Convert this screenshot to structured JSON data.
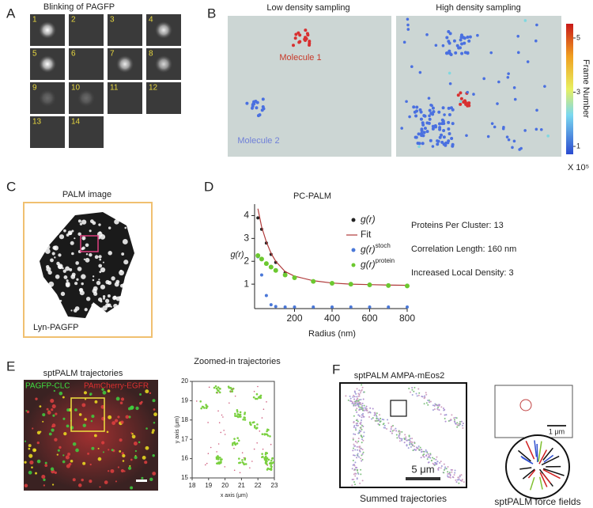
{
  "panels": {
    "a": {
      "label": "A",
      "title": "Blinking of PAGFP",
      "frames": [
        1,
        2,
        3,
        4,
        5,
        6,
        7,
        8,
        9,
        10,
        11,
        12,
        13,
        14
      ]
    },
    "b": {
      "label": "B",
      "left_title": "Low density sampling",
      "right_title": "High density sampling",
      "molecule_1": "Molecule 1",
      "molecule_2": "Molecule 2",
      "colorbar_title": "Frame Number",
      "colorbar_ticks": [
        1,
        3,
        5
      ],
      "colorbar_unit": "X 10⁵"
    },
    "c": {
      "label": "C",
      "title": "PALM image",
      "caption": "Lyn-PAGFP"
    },
    "d": {
      "label": "D"
    },
    "e": {
      "label": "E",
      "left_title": "sptPALM trajectories",
      "green_label": "PAGFP-CLC",
      "red_label": "PAmCherry-EGFR",
      "right_title": "Zoomed-in trajectories",
      "x_label": "x axis (μm)",
      "y_label": "y axis (μm)",
      "x_ticks": [
        18,
        19,
        20,
        21,
        22,
        23
      ],
      "y_ticks": [
        15,
        16,
        17,
        18,
        19,
        20
      ]
    },
    "f": {
      "label": "F",
      "title": "sptPALM AMPA-mEos2",
      "scale_label": "5 μm",
      "caption": "Summed trajectories",
      "inset_scale_label": "1 μm",
      "force_caption": "sptPALM force fields"
    }
  },
  "chart_data": {
    "type": "line",
    "title": "PC-PALM",
    "x_label": "Radius (nm)",
    "y_label": "g(r)",
    "x": [
      5,
      25,
      50,
      75,
      100,
      150,
      200,
      300,
      400,
      500,
      600,
      700,
      800
    ],
    "series": [
      {
        "name": "g(r)",
        "color": "#222222",
        "style": "dots",
        "values": [
          3.9,
          3.4,
          2.8,
          2.3,
          1.95,
          1.5,
          1.3,
          1.1,
          1.05,
          1.02,
          1.0,
          0.97,
          0.95
        ]
      },
      {
        "name": "Fit",
        "color": "#b03a3a",
        "style": "line",
        "values": [
          4.3,
          3.5,
          2.85,
          2.35,
          2.0,
          1.55,
          1.35,
          1.15,
          1.05,
          1.0,
          0.98,
          0.96,
          0.95
        ]
      },
      {
        "name": "g(r)",
        "superscript": "stoch",
        "color": "#4a78d8",
        "style": "dots",
        "values": [
          2.2,
          1.4,
          0.5,
          0.1,
          0.02,
          0,
          0,
          0,
          0,
          0,
          0,
          0,
          0
        ]
      },
      {
        "name": "g(r)",
        "superscript": "protein",
        "color": "#6cc830",
        "style": "dots",
        "values": [
          2.25,
          2.1,
          1.9,
          1.75,
          1.6,
          1.4,
          1.28,
          1.12,
          1.04,
          1.0,
          0.97,
          0.94,
          0.92
        ]
      }
    ],
    "xlim": [
      0,
      800
    ],
    "ylim": [
      0,
      4.5
    ],
    "xticks": [
      200,
      400,
      600,
      800
    ],
    "yticks": [
      1,
      2,
      3,
      4
    ],
    "annotations": [
      "Proteins Per Cluster:  13",
      "Correlation Length: 160 nm",
      "Increased Local Density: 3"
    ]
  }
}
